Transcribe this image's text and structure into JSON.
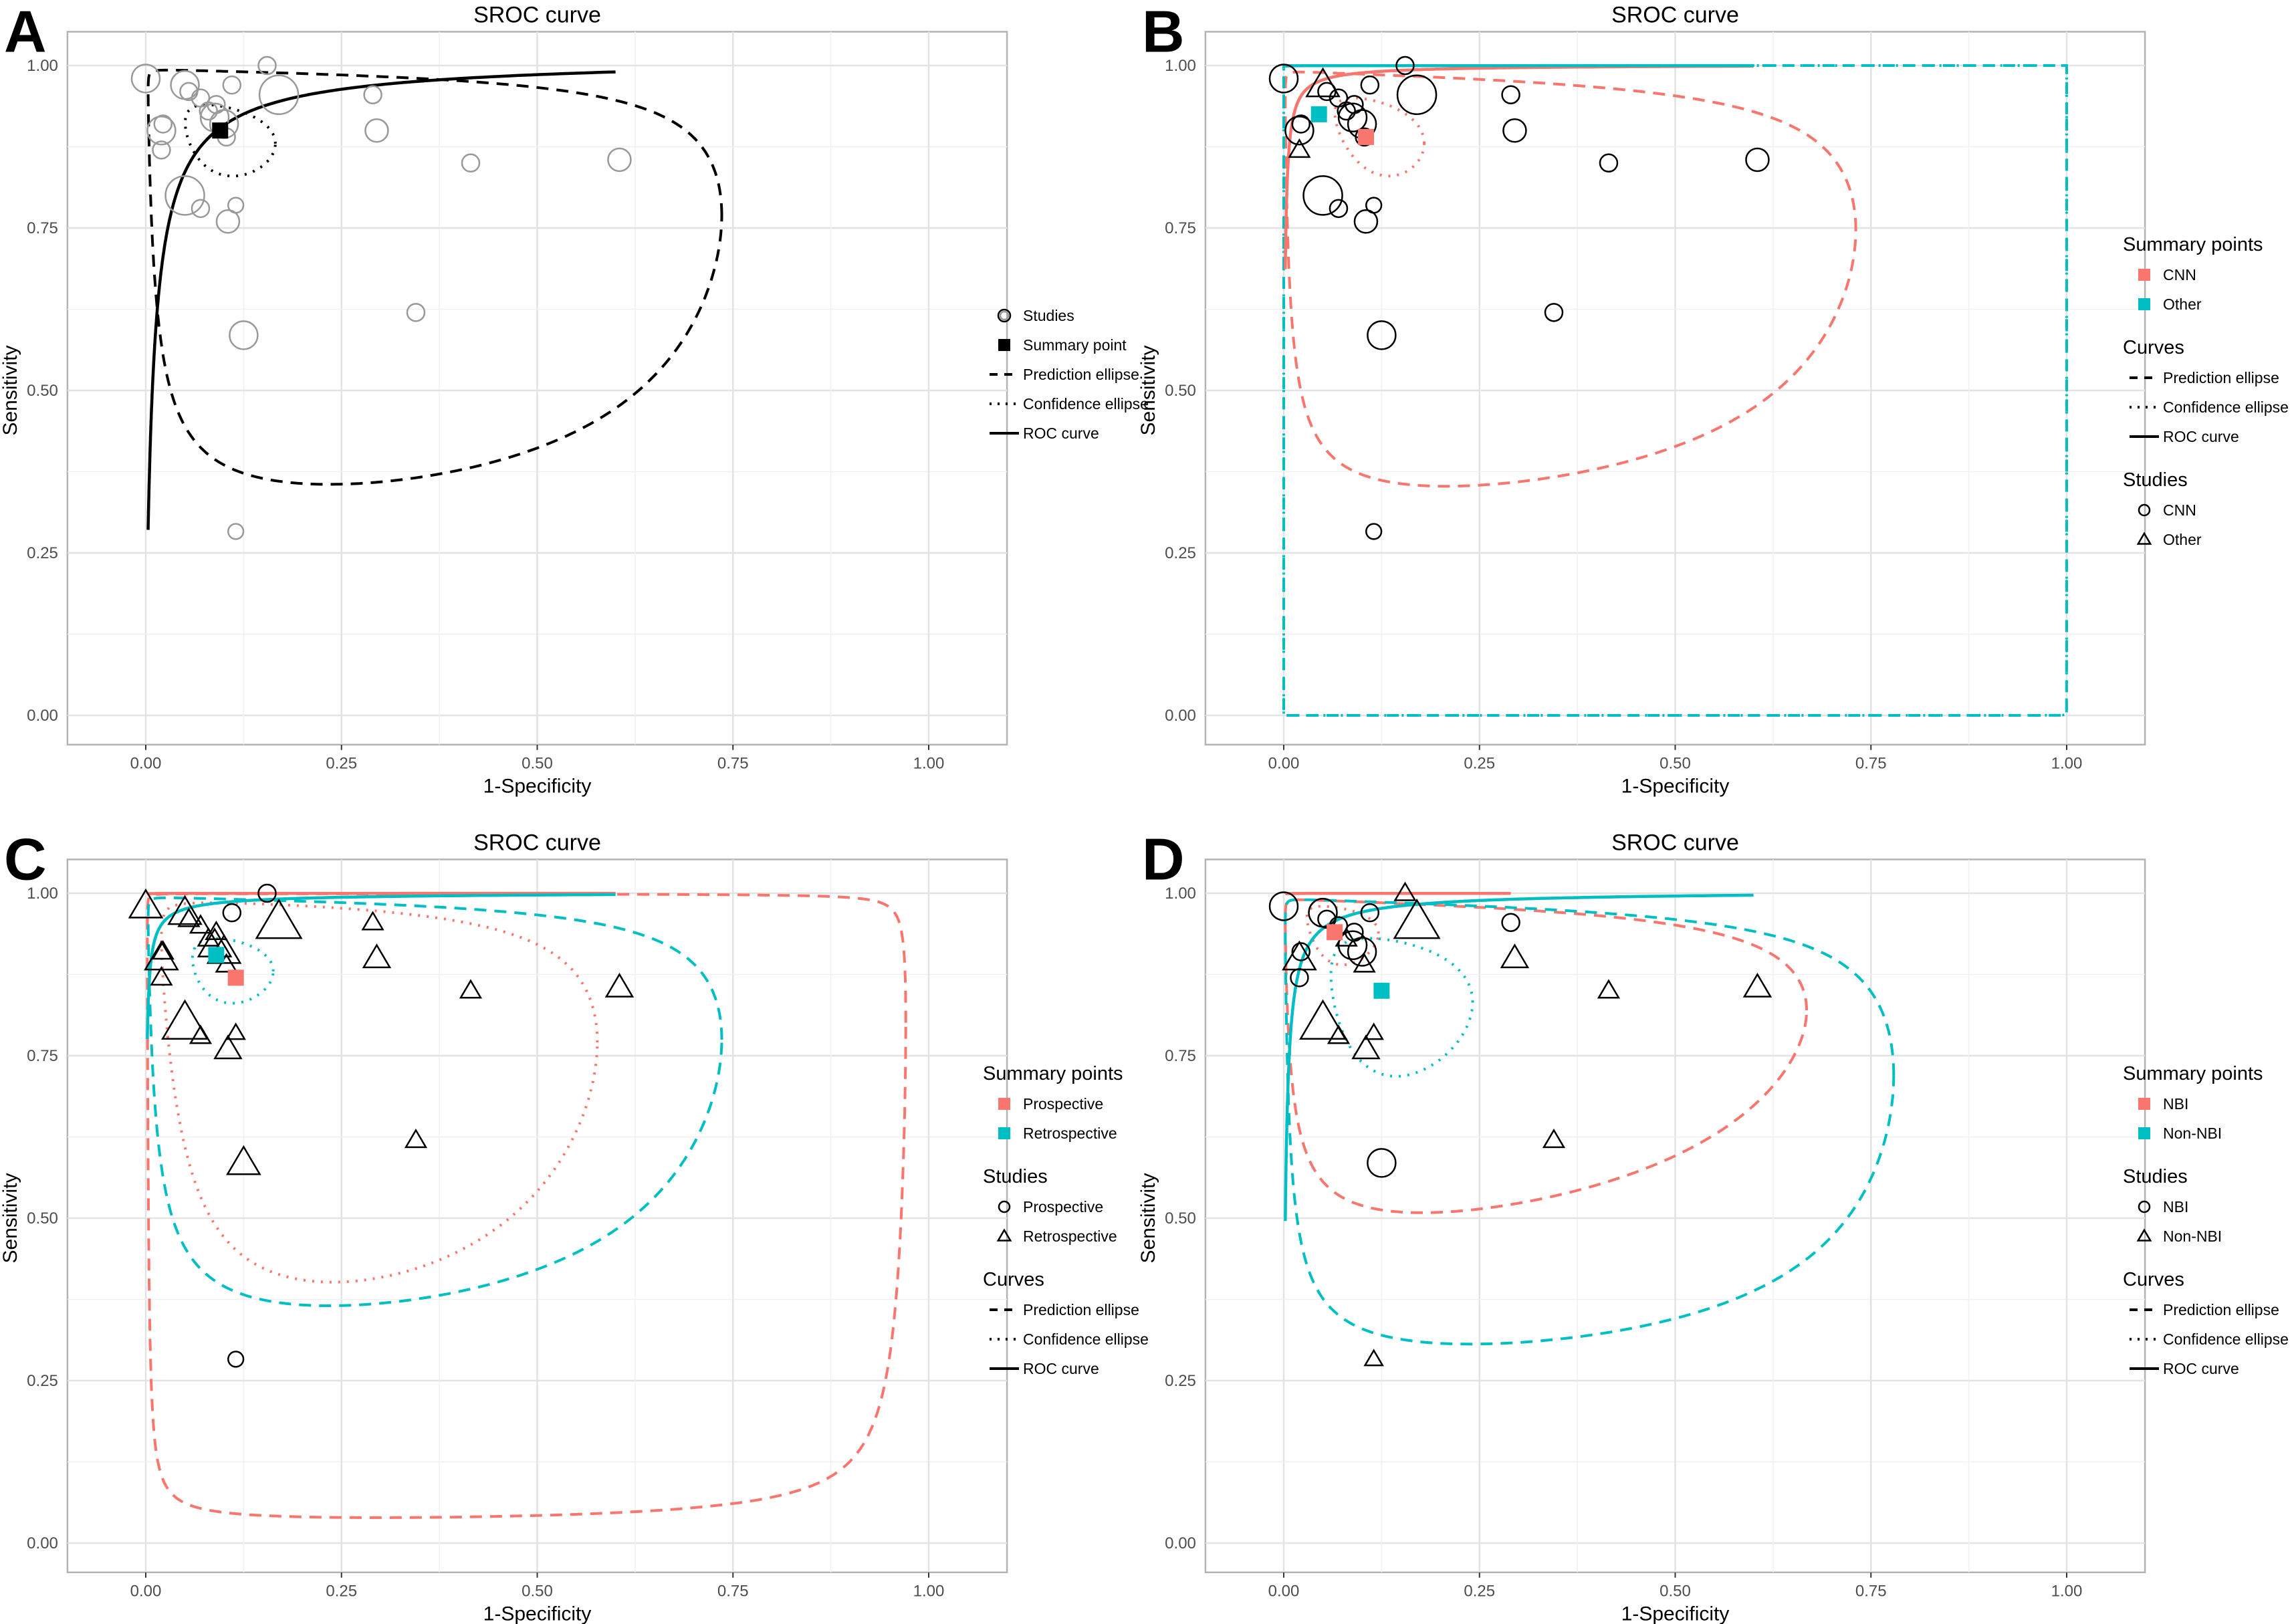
{
  "colors": {
    "red": "#F8766D",
    "teal": "#00BFC4",
    "black": "#000000",
    "gray": "#999999"
  },
  "chart_data": [
    {
      "type": "scatter",
      "letter": "A",
      "title": "SROC curve",
      "xlabel": "1-Specificity",
      "ylabel": "Sensitivity",
      "xlim": [
        0,
        1
      ],
      "ylim": [
        0,
        1
      ],
      "grid": true,
      "xticks": [
        "0.00",
        "0.25",
        "0.50",
        "0.75",
        "1.00"
      ],
      "yticks": [
        "0.00",
        "0.25",
        "0.50",
        "0.75",
        "1.00"
      ],
      "study_style": "gray",
      "group_key": null,
      "summary": [
        {
          "fpr": 0.095,
          "sens": 0.9,
          "color": "#000000"
        }
      ],
      "roc": [
        {
          "a": 4.25,
          "b": 0.89,
          "from": 0.003,
          "to": 0.6,
          "color": "#000000"
        }
      ],
      "prediction": [
        {
          "fpr": 0.085,
          "sens": 0.898,
          "sx": 3.4,
          "sy": 2.77,
          "rho": -0.35,
          "color": "#000000"
        }
      ],
      "confidence": [
        {
          "fpr": 0.093,
          "sens": 0.897,
          "sx": 0.66,
          "sy": 0.58,
          "rho": -0.3,
          "color": "#000000"
        }
      ],
      "legend": [
        {
          "title": "",
          "items": [
            {
              "key": "circle-gray",
              "label": "Studies"
            },
            {
              "key": "square-black",
              "label": "Summary point"
            },
            {
              "key": "dash",
              "label": "Prediction ellipse"
            },
            {
              "key": "dot",
              "label": "Confidence ellipse"
            },
            {
              "key": "solid",
              "label": "ROC curve"
            }
          ]
        }
      ]
    },
    {
      "type": "scatter",
      "letter": "B",
      "title": "SROC curve",
      "xlabel": "1-Specificity",
      "ylabel": "Sensitivity",
      "xlim": [
        0,
        1
      ],
      "ylim": [
        0,
        1
      ],
      "grid": true,
      "xticks": [
        "0.00",
        "0.25",
        "0.50",
        "0.75",
        "1.00"
      ],
      "yticks": [
        "0.00",
        "0.25",
        "0.50",
        "0.75",
        "1.00"
      ],
      "study_style": "black",
      "group_key": "b",
      "summary": [
        {
          "fpr": 0.105,
          "sens": 0.89,
          "color": "#F8766D"
        },
        {
          "fpr": 0.045,
          "sens": 0.925,
          "color": "#00BFC4"
        }
      ],
      "roc": [
        {
          "a": 6.5,
          "b": 0.92,
          "from": 0.002,
          "to": 0.6,
          "color": "#F8766D"
        },
        {
          "a": 9,
          "b": 0.3,
          "from": 0.002,
          "to": 0.6,
          "color": "#00BFC4"
        }
      ],
      "prediction": [
        {
          "fpr": 0.069,
          "sens": 0.88,
          "sx": 3.6,
          "sy": 2.6,
          "rho": -0.35,
          "color": "#F8766D"
        },
        {
          "fpr": 0.045,
          "sens": 0.925,
          "sx": 14,
          "sy": 14,
          "rho": 0,
          "color": "#00BFC4"
        }
      ],
      "confidence": [
        {
          "fpr": 0.11,
          "sens": 0.906,
          "sx": 0.57,
          "sy": 0.68,
          "rho": -0.4,
          "color": "#F8766D"
        },
        {
          "fpr": 0.045,
          "sens": 0.925,
          "sx": 13,
          "sy": 13,
          "rho": 0,
          "color": "#00BFC4"
        }
      ],
      "legend": [
        {
          "title": "Summary points",
          "items": [
            {
              "key": "square-red",
              "label": "CNN"
            },
            {
              "key": "square-teal",
              "label": "Other"
            }
          ]
        },
        {
          "title": "Curves",
          "items": [
            {
              "key": "dash",
              "label": "Prediction ellipse"
            },
            {
              "key": "dot",
              "label": "Confidence ellipse"
            },
            {
              "key": "solid",
              "label": "ROC curve"
            }
          ]
        },
        {
          "title": "Studies",
          "items": [
            {
              "key": "circle",
              "label": "CNN"
            },
            {
              "key": "triangle",
              "label": "Other"
            }
          ]
        }
      ]
    },
    {
      "type": "scatter",
      "letter": "C",
      "title": "SROC curve",
      "xlabel": "1-Specificity",
      "ylabel": "Sensitivity",
      "xlim": [
        0,
        1
      ],
      "ylim": [
        0,
        1
      ],
      "grid": true,
      "xticks": [
        "0.00",
        "0.25",
        "0.50",
        "0.75",
        "1.00"
      ],
      "yticks": [
        "0.00",
        "0.25",
        "0.50",
        "0.75",
        "1.00"
      ],
      "study_style": "black",
      "group_key": "c",
      "summary": [
        {
          "fpr": 0.115,
          "sens": 0.87,
          "color": "#F8766D"
        },
        {
          "fpr": 0.09,
          "sens": 0.905,
          "color": "#00BFC4"
        }
      ],
      "roc": [
        {
          "a": 9,
          "b": 0.3,
          "from": 0.002,
          "to": 0.6,
          "color": "#F8766D"
        },
        {
          "a": 5.9,
          "b": 0.75,
          "from": 0.002,
          "to": 0.6,
          "color": "#00BFC4"
        }
      ],
      "prediction": [
        {
          "fpr": 0.206,
          "sens": 0.87,
          "sx": 4.85,
          "sy": 5.1,
          "rho": -0.1,
          "color": "#F8766D"
        },
        {
          "fpr": 0.085,
          "sens": 0.9,
          "sx": 3.4,
          "sy": 2.75,
          "rho": -0.35,
          "color": "#00BFC4"
        }
      ],
      "confidence": [
        {
          "fpr": 0.143,
          "sens": 0.87,
          "sx": 2.1,
          "sy": 2.3,
          "rho": -0.3,
          "color": "#F8766D"
        },
        {
          "fpr": 0.1,
          "sens": 0.89,
          "sx": 0.56,
          "sy": 0.5,
          "rho": -0.2,
          "color": "#00BFC4"
        }
      ],
      "legend": [
        {
          "title": "Summary points",
          "items": [
            {
              "key": "square-red",
              "label": "Prospective"
            },
            {
              "key": "square-teal",
              "label": "Retrospective"
            }
          ]
        },
        {
          "title": "Studies",
          "items": [
            {
              "key": "circle",
              "label": "Prospective"
            },
            {
              "key": "triangle",
              "label": "Retrospective"
            }
          ]
        },
        {
          "title": "Curves",
          "items": [
            {
              "key": "dash",
              "label": "Prediction ellipse"
            },
            {
              "key": "dot",
              "label": "Confidence ellipse"
            },
            {
              "key": "solid",
              "label": "ROC curve"
            }
          ]
        }
      ]
    },
    {
      "type": "scatter",
      "letter": "D",
      "title": "SROC curve",
      "xlabel": "1-Specificity",
      "ylabel": "Sensitivity",
      "xlim": [
        0,
        1
      ],
      "ylim": [
        0,
        1
      ],
      "grid": true,
      "xticks": [
        "0.00",
        "0.25",
        "0.50",
        "0.75",
        "1.00"
      ],
      "yticks": [
        "0.00",
        "0.25",
        "0.50",
        "0.75",
        "1.00"
      ],
      "study_style": "black",
      "group_key": "d",
      "summary": [
        {
          "fpr": 0.065,
          "sens": 0.94,
          "color": "#F8766D"
        },
        {
          "fpr": 0.125,
          "sens": 0.85,
          "color": "#00BFC4"
        }
      ],
      "roc": [
        {
          "a": 9,
          "b": 0.3,
          "from": 0.002,
          "to": 0.29,
          "color": "#F8766D"
        },
        {
          "a": 5.45,
          "b": 0.88,
          "from": 0.002,
          "to": 0.6,
          "color": "#00BFC4"
        }
      ],
      "prediction": [
        {
          "fpr": 0.06,
          "sens": 0.91,
          "sx": 3.45,
          "sy": 2.28,
          "rho": -0.35,
          "color": "#F8766D"
        },
        {
          "fpr": 0.078,
          "sens": 0.869,
          "sx": 3.73,
          "sy": 2.71,
          "rho": -0.35,
          "color": "#00BFC4"
        }
      ],
      "confidence": [
        {
          "fpr": 0.061,
          "sens": 0.952,
          "sx": 0.75,
          "sy": 0.9,
          "rho": -0.3,
          "color": "#F8766D"
        },
        {
          "fpr": 0.125,
          "sens": 0.854,
          "sx": 0.8,
          "sy": 0.83,
          "rho": -0.2,
          "color": "#00BFC4"
        }
      ],
      "legend": [
        {
          "title": "Summary points",
          "items": [
            {
              "key": "square-red",
              "label": "NBI"
            },
            {
              "key": "square-teal",
              "label": "Non-NBI"
            }
          ]
        },
        {
          "title": "Studies",
          "items": [
            {
              "key": "circle",
              "label": "NBI"
            },
            {
              "key": "triangle",
              "label": "Non-NBI"
            }
          ]
        },
        {
          "title": "Curves",
          "items": [
            {
              "key": "dash",
              "label": "Prediction ellipse"
            },
            {
              "key": "dot",
              "label": "Confidence ellipse"
            },
            {
              "key": "solid",
              "label": "ROC curve"
            }
          ]
        }
      ]
    }
  ],
  "studies": [
    {
      "fpr": 0.0,
      "sens": 0.98,
      "size": 2,
      "b": 0,
      "c": 1,
      "d": 0
    },
    {
      "fpr": 0.155,
      "sens": 1.0,
      "size": 1,
      "b": 0,
      "c": 0,
      "d": 1
    },
    {
      "fpr": 0.05,
      "sens": 0.97,
      "size": 2,
      "b": 1,
      "c": 1,
      "d": 0
    },
    {
      "fpr": 0.055,
      "sens": 0.96,
      "size": 1,
      "b": 0,
      "c": 1,
      "d": 0
    },
    {
      "fpr": 0.02,
      "sens": 0.9,
      "size": 2,
      "b": 0,
      "c": 1,
      "d": 1
    },
    {
      "fpr": 0.022,
      "sens": 0.91,
      "size": 1,
      "b": 0,
      "c": 1,
      "d": 0
    },
    {
      "fpr": 0.07,
      "sens": 0.95,
      "size": 1,
      "b": 0,
      "c": 1,
      "d": 0
    },
    {
      "fpr": 0.09,
      "sens": 0.94,
      "size": 1,
      "b": 0,
      "c": 1,
      "d": 0
    },
    {
      "fpr": 0.08,
      "sens": 0.93,
      "size": 1,
      "b": 0,
      "c": 1,
      "d": 1
    },
    {
      "fpr": 0.088,
      "sens": 0.92,
      "size": 2,
      "b": 0,
      "c": 1,
      "d": 0
    },
    {
      "fpr": 0.1,
      "sens": 0.91,
      "size": 2,
      "b": 0,
      "c": 1,
      "d": 0
    },
    {
      "fpr": 0.103,
      "sens": 0.89,
      "size": 1,
      "b": 0,
      "c": 1,
      "d": 1
    },
    {
      "fpr": 0.02,
      "sens": 0.87,
      "size": 1,
      "b": 1,
      "c": 1,
      "d": 0
    },
    {
      "fpr": 0.17,
      "sens": 0.955,
      "size": 3,
      "b": 0,
      "c": 1,
      "d": 1
    },
    {
      "fpr": 0.29,
      "sens": 0.955,
      "size": 1,
      "b": 0,
      "c": 1,
      "d": 0
    },
    {
      "fpr": 0.295,
      "sens": 0.9,
      "size": 1.5,
      "b": 0,
      "c": 1,
      "d": 1
    },
    {
      "fpr": 0.415,
      "sens": 0.85,
      "size": 1,
      "b": 0,
      "c": 1,
      "d": 1
    },
    {
      "fpr": 0.605,
      "sens": 0.855,
      "size": 1.5,
      "b": 0,
      "c": 1,
      "d": 1
    },
    {
      "fpr": 0.05,
      "sens": 0.8,
      "size": 3,
      "b": 0,
      "c": 1,
      "d": 1
    },
    {
      "fpr": 0.07,
      "sens": 0.78,
      "size": 1,
      "b": 0,
      "c": 1,
      "d": 1
    },
    {
      "fpr": 0.115,
      "sens": 0.785,
      "size": 0.8,
      "b": 0,
      "c": 1,
      "d": 1
    },
    {
      "fpr": 0.105,
      "sens": 0.76,
      "size": 1.5,
      "b": 0,
      "c": 1,
      "d": 1
    },
    {
      "fpr": 0.345,
      "sens": 0.62,
      "size": 1,
      "b": 0,
      "c": 1,
      "d": 1
    },
    {
      "fpr": 0.125,
      "sens": 0.585,
      "size": 2,
      "b": 0,
      "c": 1,
      "d": 0
    },
    {
      "fpr": 0.115,
      "sens": 0.283,
      "size": 0.8,
      "b": 0,
      "c": 0,
      "d": 1
    },
    {
      "fpr": 0.11,
      "sens": 0.97,
      "size": 1,
      "b": 0,
      "c": 0,
      "d": 0
    }
  ]
}
